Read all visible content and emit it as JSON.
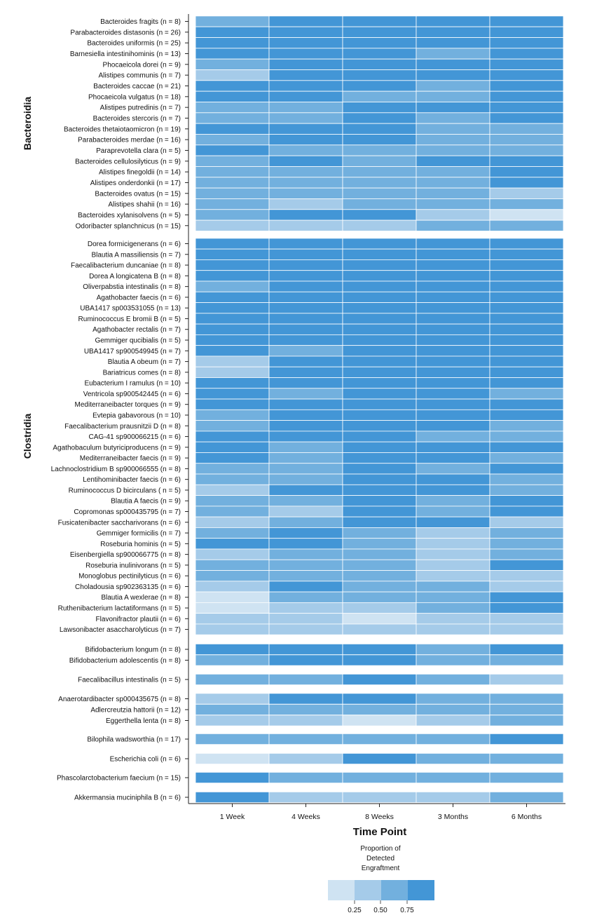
{
  "chart_data": {
    "type": "heatmap",
    "xlabel": "Time Point",
    "columns": [
      "1 Week",
      "4 Weeks",
      "8 Weeks",
      "3 Months",
      "6 Months"
    ],
    "group_labels": [
      "Bacteroidia",
      "Clostridia"
    ],
    "colors": {
      "level1": "#cfe3f2",
      "level2": "#a5cbe9",
      "level3": "#72b0de",
      "level4": "#4396d6"
    },
    "legend": {
      "title_lines": [
        "Proportion of",
        "Detected",
        "Engraftment"
      ],
      "ticks": [
        "0.25",
        "0.50",
        "0.75"
      ],
      "placement": "bottom-center"
    },
    "rows": [
      {
        "label": "Bacteroides fragits (n = 8)",
        "values": [
          0.6,
          0.85,
          0.85,
          0.85,
          0.85
        ]
      },
      {
        "label": "Parabacteroides distasonis (n = 26)",
        "values": [
          0.85,
          0.85,
          0.85,
          0.85,
          0.85
        ]
      },
      {
        "label": "Bacteroides uniformis (n = 25)",
        "values": [
          0.85,
          0.85,
          0.85,
          0.85,
          0.85
        ]
      },
      {
        "label": "Barnesiella intestinihominis (n = 13)",
        "values": [
          0.85,
          0.85,
          0.85,
          0.6,
          0.85
        ]
      },
      {
        "label": "Phocaeicola dorei (n = 9)",
        "values": [
          0.6,
          0.85,
          0.85,
          0.85,
          0.85
        ]
      },
      {
        "label": "Alistipes communis (n = 7)",
        "values": [
          0.4,
          0.85,
          0.85,
          0.85,
          0.85
        ]
      },
      {
        "label": "Bacteroides caccae (n = 21)",
        "values": [
          0.85,
          0.85,
          0.85,
          0.6,
          0.85
        ]
      },
      {
        "label": "Phocaeicola vulgatus (n = 18)",
        "values": [
          0.85,
          0.85,
          0.6,
          0.6,
          0.85
        ]
      },
      {
        "label": "Alistipes putredinis (n = 7)",
        "values": [
          0.6,
          0.6,
          0.85,
          0.85,
          0.85
        ]
      },
      {
        "label": "Bacteroides stercoris (n = 7)",
        "values": [
          0.6,
          0.6,
          0.85,
          0.6,
          0.85
        ]
      },
      {
        "label": "Bacteroides thetaiotaomicron (n = 19)",
        "values": [
          0.85,
          0.85,
          0.85,
          0.6,
          0.6
        ]
      },
      {
        "label": "Parabacteroides merdae (n = 16)",
        "values": [
          0.6,
          0.85,
          0.85,
          0.6,
          0.6
        ]
      },
      {
        "label": "Paraprevotella clara (n = 5)",
        "values": [
          0.85,
          0.6,
          0.6,
          0.6,
          0.6
        ]
      },
      {
        "label": "Bacteroides cellulosilyticus (n = 9)",
        "values": [
          0.6,
          0.85,
          0.6,
          0.85,
          0.85
        ]
      },
      {
        "label": "Alistipes finegoldii (n = 14)",
        "values": [
          0.6,
          0.6,
          0.6,
          0.6,
          0.85
        ]
      },
      {
        "label": "Alistipes onderdonkii (n = 17)",
        "values": [
          0.6,
          0.6,
          0.6,
          0.6,
          0.85
        ]
      },
      {
        "label": "Bacteroides ovatus (n = 15)",
        "values": [
          0.6,
          0.6,
          0.6,
          0.6,
          0.4
        ]
      },
      {
        "label": "Alistipes shahii (n = 16)",
        "values": [
          0.6,
          0.4,
          0.6,
          0.6,
          0.6
        ]
      },
      {
        "label": "Bacteroides xylanisolvens (n = 5)",
        "values": [
          0.6,
          0.85,
          0.85,
          0.4,
          0.2
        ]
      },
      {
        "label": "Odoribacter splanchnicus (n = 15)",
        "values": [
          0.4,
          0.4,
          0.4,
          0.6,
          0.6
        ]
      },
      {
        "label": "Dorea formicigenerans (n = 6)",
        "values": [
          0.85,
          0.85,
          0.85,
          0.85,
          0.85
        ]
      },
      {
        "label": "Blautia A massiliensis (n = 7)",
        "values": [
          0.85,
          0.85,
          0.85,
          0.85,
          0.85
        ]
      },
      {
        "label": "Faecalibacterium duncaniae (n = 8)",
        "values": [
          0.85,
          0.85,
          0.85,
          0.85,
          0.85
        ]
      },
      {
        "label": "Dorea A longicatena B (n = 8)",
        "values": [
          0.85,
          0.85,
          0.85,
          0.85,
          0.85
        ]
      },
      {
        "label": "Oliverpabstia intestinalis (n = 8)",
        "values": [
          0.6,
          0.85,
          0.85,
          0.85,
          0.85
        ]
      },
      {
        "label": "Agathobacter faecis (n = 6)",
        "values": [
          0.85,
          0.85,
          0.85,
          0.85,
          0.85
        ]
      },
      {
        "label": "UBA1417 sp003531055 (n = 13)",
        "values": [
          0.85,
          0.85,
          0.85,
          0.85,
          0.85
        ]
      },
      {
        "label": "Ruminococcus E bromii B (n = 5)",
        "values": [
          0.85,
          0.85,
          0.85,
          0.85,
          0.85
        ]
      },
      {
        "label": "Agathobacter rectalis (n = 7)",
        "values": [
          0.85,
          0.85,
          0.85,
          0.85,
          0.85
        ]
      },
      {
        "label": "Gemmiger qucibialis (n = 5)",
        "values": [
          0.85,
          0.85,
          0.85,
          0.85,
          0.85
        ]
      },
      {
        "label": "UBA1417 sp900549945 (n = 7)",
        "values": [
          0.85,
          0.6,
          0.85,
          0.85,
          0.85
        ]
      },
      {
        "label": "Blautia A obeum (n = 7)",
        "values": [
          0.4,
          0.85,
          0.85,
          0.85,
          0.85
        ]
      },
      {
        "label": "Bariatricus comes (n = 8)",
        "values": [
          0.4,
          0.85,
          0.85,
          0.85,
          0.85
        ]
      },
      {
        "label": "Eubacterium I ramulus (n = 10)",
        "values": [
          0.85,
          0.85,
          0.85,
          0.85,
          0.85
        ]
      },
      {
        "label": "Ventricola sp900542445 (n = 6)",
        "values": [
          0.85,
          0.6,
          0.85,
          0.85,
          0.6
        ]
      },
      {
        "label": "Mediterraneibacter torques (n = 9)",
        "values": [
          0.85,
          0.85,
          0.85,
          0.85,
          0.85
        ]
      },
      {
        "label": "Evtepia gabavorous (n = 10)",
        "values": [
          0.6,
          0.85,
          0.85,
          0.85,
          0.85
        ]
      },
      {
        "label": "Faecalibacterium prausnitzii D (n = 8)",
        "values": [
          0.6,
          0.85,
          0.85,
          0.85,
          0.6
        ]
      },
      {
        "label": "CAG-41 sp900066215 (n = 6)",
        "values": [
          0.85,
          0.85,
          0.85,
          0.6,
          0.6
        ]
      },
      {
        "label": "Agathobaculum butyriciproducens (n = 9)",
        "values": [
          0.85,
          0.6,
          0.85,
          0.85,
          0.85
        ]
      },
      {
        "label": "Mediterraneibacter faecis (n = 9)",
        "values": [
          0.85,
          0.6,
          0.85,
          0.85,
          0.6
        ]
      },
      {
        "label": "Lachnoclostridium B sp900066555 (n = 8)",
        "values": [
          0.6,
          0.6,
          0.85,
          0.6,
          0.85
        ]
      },
      {
        "label": "Lentihominibacter faecis (n = 6)",
        "values": [
          0.6,
          0.6,
          0.85,
          0.85,
          0.6
        ]
      },
      {
        "label": "Ruminococcus D bicirculans ( n = 5)",
        "values": [
          0.4,
          0.85,
          0.85,
          0.85,
          0.6
        ]
      },
      {
        "label": "Blautia A faecis (n = 9)",
        "values": [
          0.6,
          0.6,
          0.85,
          0.6,
          0.85
        ]
      },
      {
        "label": "Copromonas sp000435795 (n = 7)",
        "values": [
          0.6,
          0.4,
          0.85,
          0.6,
          0.85
        ]
      },
      {
        "label": "Fusicatenibacter saccharivorans (n = 6)",
        "values": [
          0.4,
          0.6,
          0.85,
          0.85,
          0.4
        ]
      },
      {
        "label": "Gemmiger formicilis (n = 7)",
        "values": [
          0.6,
          0.85,
          0.6,
          0.4,
          0.6
        ]
      },
      {
        "label": "Roseburia hominis (n = 5)",
        "values": [
          0.85,
          0.85,
          0.6,
          0.4,
          0.6
        ]
      },
      {
        "label": "Eisenbergiella sp900066775 (n = 8)",
        "values": [
          0.4,
          0.6,
          0.6,
          0.4,
          0.6
        ]
      },
      {
        "label": "Roseburia inulinivorans (n = 5)",
        "values": [
          0.6,
          0.6,
          0.6,
          0.4,
          0.85
        ]
      },
      {
        "label": "Monoglobus pectinilyticus (n = 6)",
        "values": [
          0.6,
          0.6,
          0.6,
          0.4,
          0.4
        ]
      },
      {
        "label": "Choladousia sp902363135 (n = 6)",
        "values": [
          0.4,
          0.85,
          0.6,
          0.6,
          0.4
        ]
      },
      {
        "label": "Blautia A wexlerae (n = 8)",
        "values": [
          0.2,
          0.6,
          0.6,
          0.6,
          0.85
        ]
      },
      {
        "label": "Ruthenibacterium lactatiformans (n = 5)",
        "values": [
          0.2,
          0.4,
          0.4,
          0.6,
          0.85
        ]
      },
      {
        "label": "Flavonifractor plautii (n = 6)",
        "values": [
          0.4,
          0.4,
          0.2,
          0.4,
          0.4
        ]
      },
      {
        "label": "Lawsonibacter asaccharolyticus (n = 7)",
        "values": [
          0.4,
          0.4,
          0.4,
          0.4,
          0.4
        ]
      },
      {
        "label": "Bifidobacterium longum (n = 8)",
        "values": [
          0.85,
          0.85,
          0.85,
          0.6,
          0.85
        ]
      },
      {
        "label": "Bifidobacterium adolescentis (n = 8)",
        "values": [
          0.6,
          0.85,
          0.85,
          0.6,
          0.6
        ]
      },
      {
        "label": "Faecalibacillus intestinalis (n = 5)",
        "values": [
          0.6,
          0.6,
          0.85,
          0.6,
          0.4
        ]
      },
      {
        "label": "Anaerotardibacter sp000435675 (n = 8)",
        "values": [
          0.4,
          0.85,
          0.85,
          0.6,
          0.6
        ]
      },
      {
        "label": "Adlercreutzia hattorii (n = 12)",
        "values": [
          0.6,
          0.6,
          0.6,
          0.6,
          0.6
        ]
      },
      {
        "label": "Eggerthella lenta (n = 8)",
        "values": [
          0.4,
          0.4,
          0.2,
          0.4,
          0.6
        ]
      },
      {
        "label": "Bilophila wadsworthia (n = 17)",
        "values": [
          0.6,
          0.6,
          0.6,
          0.6,
          0.85
        ]
      },
      {
        "label": "Escherichia coli (n = 6)",
        "values": [
          0.2,
          0.4,
          0.85,
          0.6,
          0.6
        ]
      },
      {
        "label": "Phascolarctobacterium faecium (n = 15)",
        "values": [
          0.85,
          0.6,
          0.6,
          0.6,
          0.6
        ]
      },
      {
        "label": "Akkermansia muciniphila B (n = 6)",
        "values": [
          0.85,
          0.4,
          0.4,
          0.4,
          0.6
        ]
      }
    ]
  }
}
